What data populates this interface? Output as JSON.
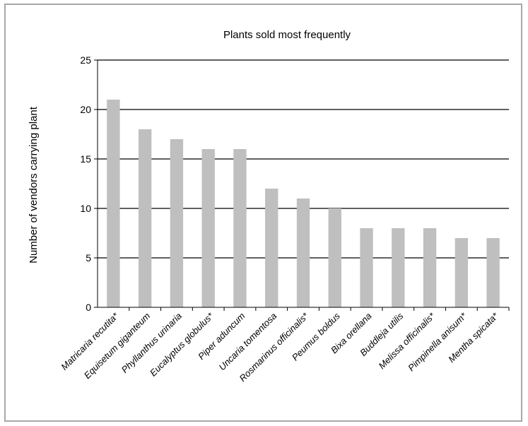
{
  "chart_data": {
    "type": "bar",
    "title": "Plants sold most frequently",
    "xlabel": "",
    "ylabel": "Number of vendors carrying plant",
    "ylim": [
      0,
      25
    ],
    "yticks": [
      0,
      5,
      10,
      15,
      20,
      25
    ],
    "grid": "horizontal",
    "colors": {
      "bar": "#bfbfbf",
      "gridline": "#000000",
      "frame": "#a8a8a8"
    },
    "categories": [
      "Matricaria recutita*",
      "Equisetum giganteum",
      "Phyllanthus urinaria",
      "Eucalyptus globulus*",
      "Piper aduncum",
      "Uncaria tomentosa",
      "Rosmarinus officinalis*",
      "Peumus boldus",
      "Bixa orellana",
      "Buddleja utilis",
      "Melissa officinalis*",
      "Pimpinella anisum*",
      "Mentha spicata*"
    ],
    "values": [
      21,
      18,
      17,
      16,
      16,
      12,
      11,
      10,
      8,
      8,
      8,
      7,
      7
    ]
  }
}
